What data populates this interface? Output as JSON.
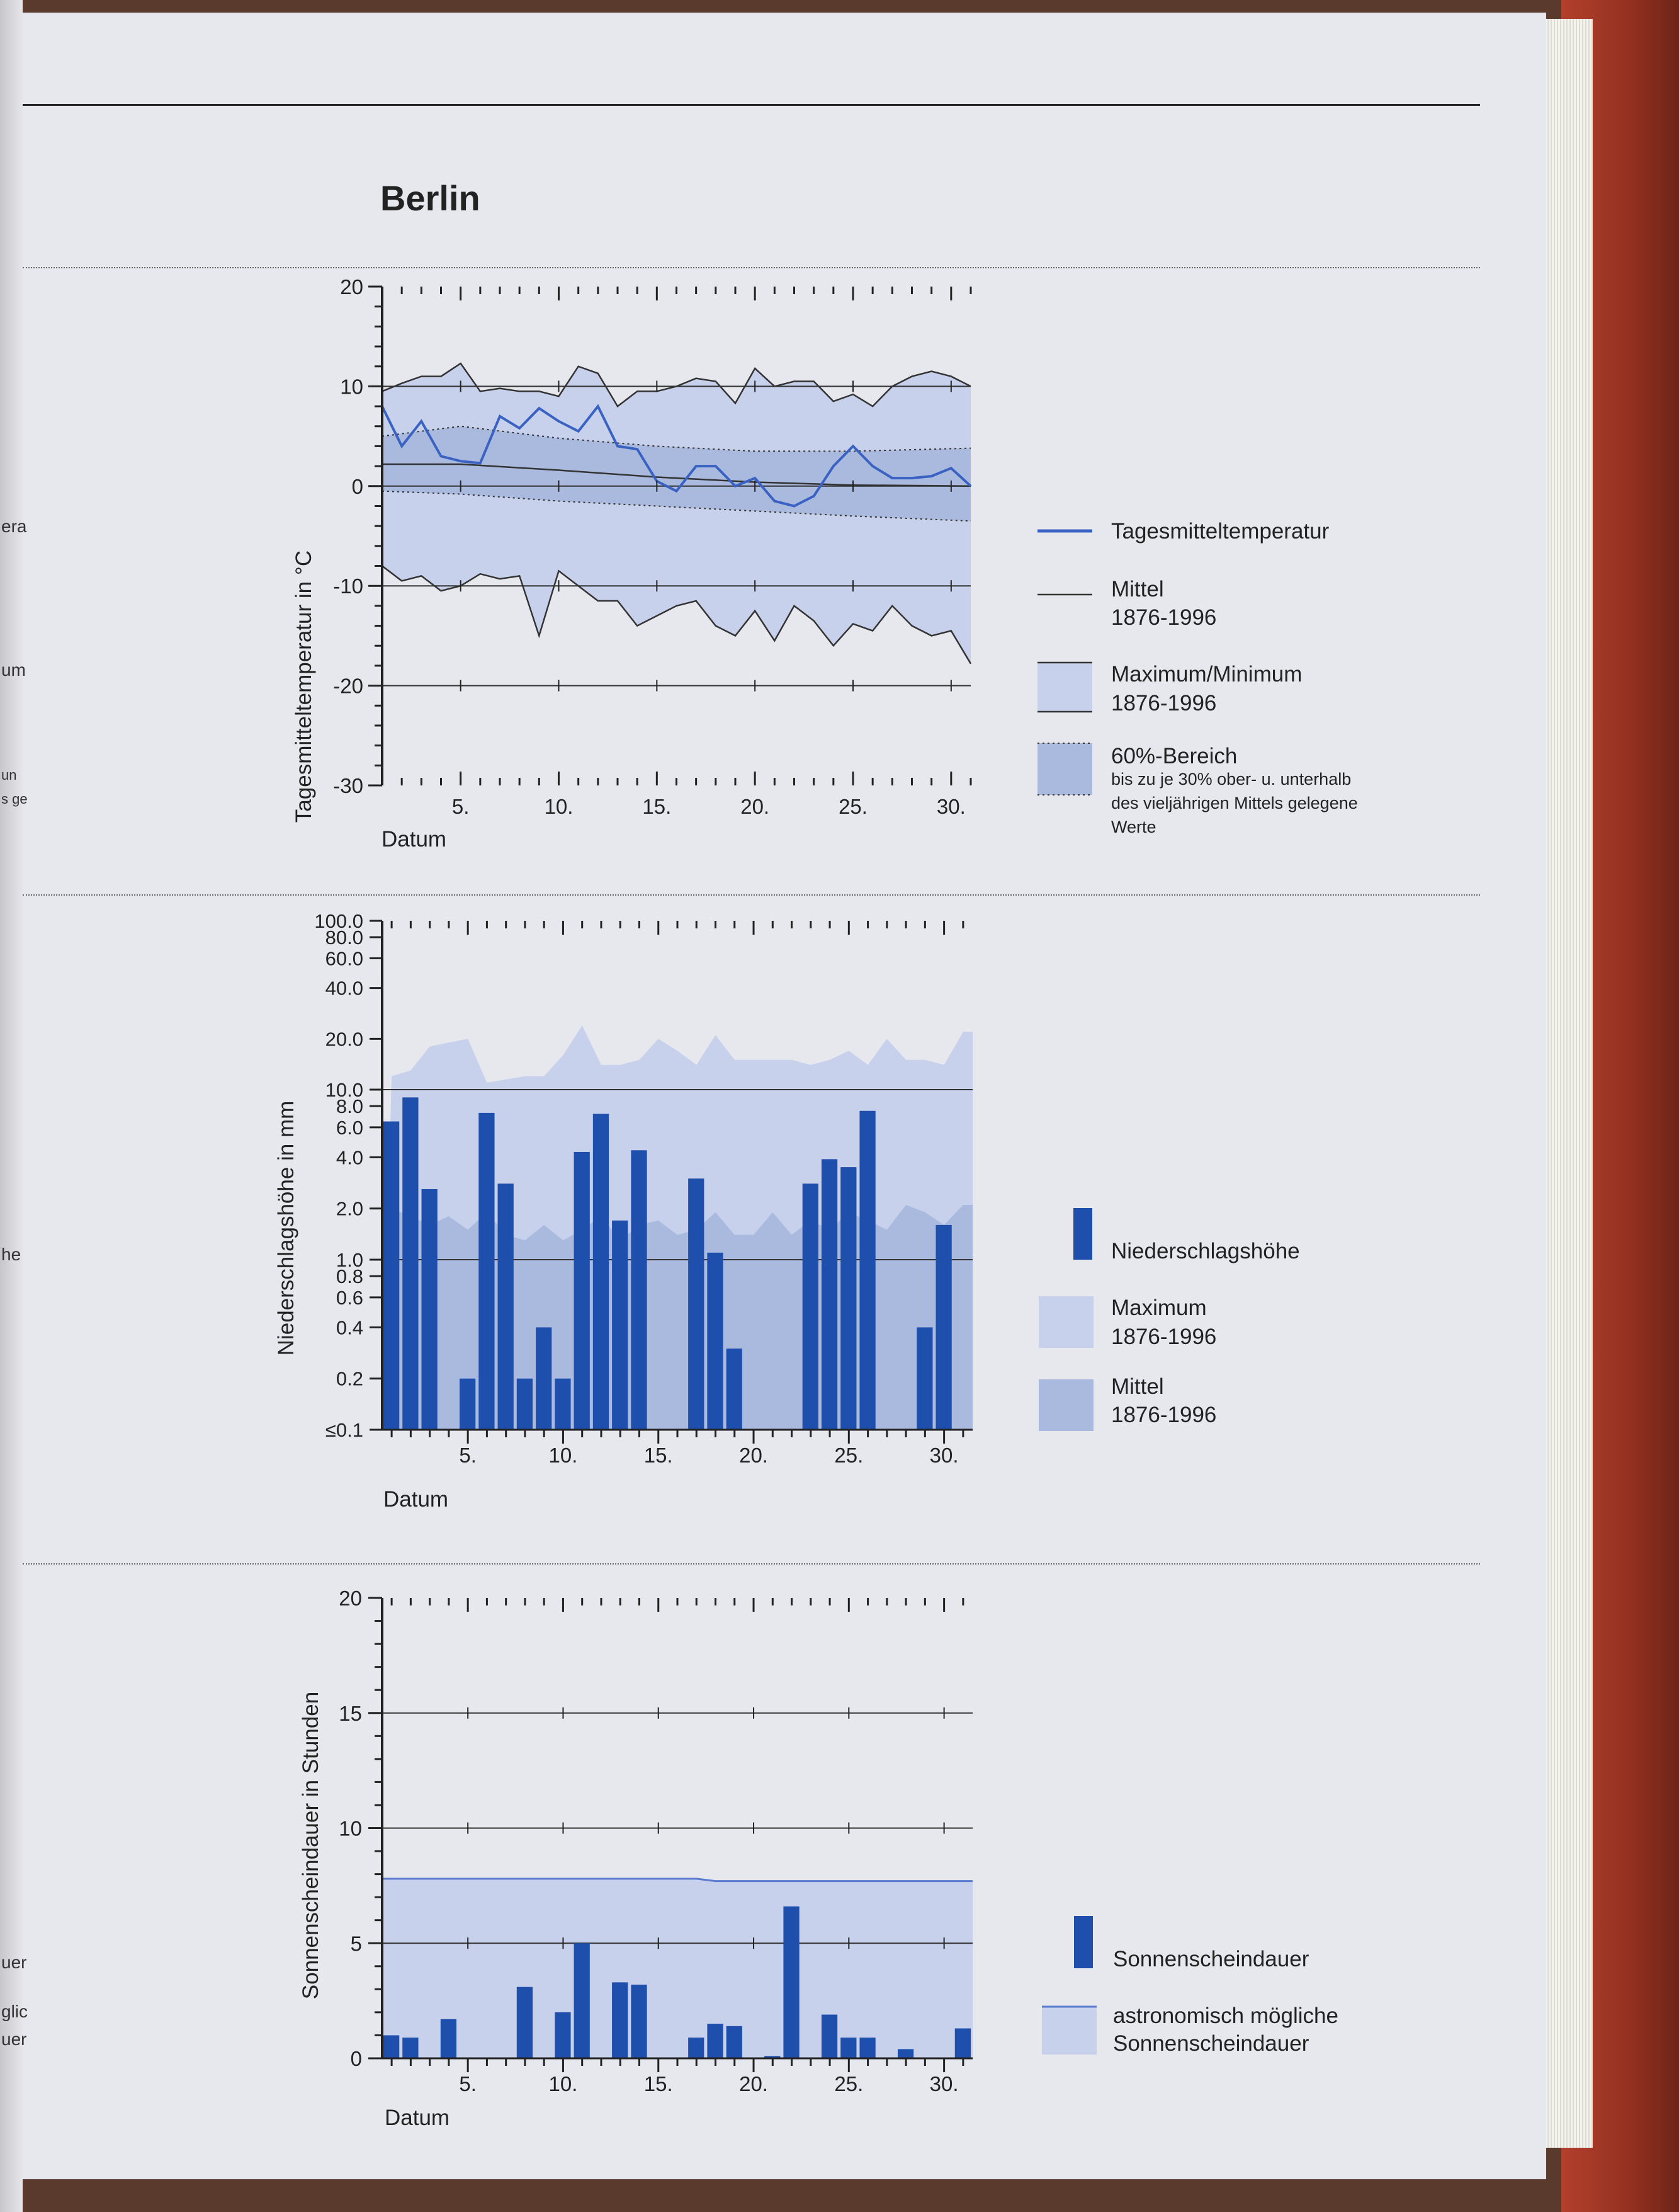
{
  "page": {
    "title": "Berlin",
    "side_fragments": [
      "era",
      "um",
      "un",
      "s ge",
      "he",
      "uer",
      "glic",
      "uer"
    ]
  },
  "charts": {
    "temperature": {
      "type": "line",
      "ylabel": "Tagesmitteltemperatur in °C",
      "xlabel": "Datum",
      "ylim": [
        -30,
        20
      ],
      "yticks": [
        "20",
        "10",
        "0",
        "-10",
        "-20",
        "-30"
      ],
      "xticks": [
        "5.",
        "10.",
        "15.",
        "20.",
        "25.",
        "30."
      ],
      "legend": {
        "daily": "Tagesmitteltemperatur",
        "mean_1": "Mittel",
        "mean_2": "1876-1996",
        "maxmin_1": "Maximum/Minimum",
        "maxmin_2": "1876-1996",
        "band_1": "60%-Bereich",
        "band_2": "bis zu je 30% ober- u. unterhalb",
        "band_3": "des vieljährigen Mittels gelegene",
        "band_4": "Werte"
      }
    },
    "precipitation": {
      "type": "bar",
      "ylabel": "Niederschlagshöhe in mm",
      "xlabel": "Datum",
      "yticks": [
        "100.0",
        "80.0",
        "60.0",
        "40.0",
        "20.0",
        "10.0",
        "8.0",
        "6.0",
        "4.0",
        "2.0",
        "1.0",
        "0.8",
        "0.6",
        "0.4",
        "0.2",
        "≤0.1"
      ],
      "xticks": [
        "5.",
        "10.",
        "15.",
        "20.",
        "25.",
        "30."
      ],
      "legend": {
        "bars": "Niederschlagshöhe",
        "max_1": "Maximum",
        "max_2": "1876-1996",
        "mean_1": "Mittel",
        "mean_2": "1876-1996"
      }
    },
    "sunshine": {
      "type": "bar",
      "ylabel": "Sonnenscheindauer in Stunden",
      "xlabel": "Datum",
      "ylim": [
        0,
        20
      ],
      "yticks": [
        "20",
        "15",
        "10",
        "5",
        "0"
      ],
      "xticks": [
        "5.",
        "10.",
        "15.",
        "20.",
        "25.",
        "30."
      ],
      "legend": {
        "bars": "Sonnenscheindauer",
        "astro_1": "astronomisch mögliche",
        "astro_2": "Sonnenscheindauer"
      }
    }
  },
  "chart_data": [
    {
      "type": "line",
      "xlabel": "Datum",
      "ylabel": "Tagesmitteltemperatur in °C",
      "ylim": [
        -30,
        20
      ],
      "xlim": [
        1,
        31
      ],
      "series": [
        {
          "name": "Tagesmitteltemperatur",
          "x": [
            1,
            2,
            3,
            4,
            5,
            6,
            7,
            8,
            9,
            10,
            11,
            12,
            13,
            14,
            15,
            16,
            17,
            18,
            19,
            20,
            21,
            22,
            23,
            24,
            25,
            26,
            27,
            28,
            29,
            30,
            31
          ],
          "values": [
            8,
            4,
            6.5,
            3,
            2.5,
            2.3,
            7,
            5.8,
            7.8,
            6.5,
            5.5,
            8,
            4,
            3.7,
            0.5,
            -0.5,
            2,
            2,
            0,
            0.8,
            -1.5,
            -2,
            -1,
            2,
            4,
            2,
            0.8,
            0.8,
            1,
            1.8,
            0
          ]
        },
        {
          "name": "Mittel 1876-1996",
          "x": [
            1,
            5,
            10,
            15,
            20,
            25,
            31
          ],
          "values": [
            2.2,
            2.2,
            1.6,
            0.9,
            0.4,
            0.1,
            0
          ]
        },
        {
          "name": "Maximum 1876-1996",
          "x": [
            1,
            2,
            3,
            4,
            5,
            6,
            7,
            8,
            9,
            10,
            11,
            12,
            13,
            14,
            15,
            16,
            17,
            18,
            19,
            20,
            21,
            22,
            23,
            24,
            25,
            26,
            27,
            28,
            29,
            30,
            31
          ],
          "values": [
            9.5,
            10.3,
            11,
            11,
            12.3,
            9.5,
            9.8,
            9.5,
            9.5,
            9,
            12,
            11.3,
            8,
            9.5,
            9.5,
            10,
            10.8,
            10.5,
            8.3,
            11.8,
            10,
            10.5,
            10.5,
            8.5,
            9.2,
            8,
            10,
            11,
            11.5,
            11,
            10
          ]
        },
        {
          "name": "Minimum 1876-1996",
          "x": [
            1,
            2,
            3,
            4,
            5,
            6,
            7,
            8,
            9,
            10,
            11,
            12,
            13,
            14,
            15,
            16,
            17,
            18,
            19,
            20,
            21,
            22,
            23,
            24,
            25,
            26,
            27,
            28,
            29,
            30,
            31
          ],
          "values": [
            -8,
            -9.5,
            -9,
            -10.5,
            -10,
            -8.8,
            -9.3,
            -9,
            -15,
            -8.5,
            -10,
            -11.5,
            -11.5,
            -14,
            -13,
            -12,
            -11.5,
            -14,
            -15,
            -12.5,
            -15.5,
            -12,
            -13.5,
            -16,
            -13.8,
            -14.5,
            -12,
            -14,
            -15,
            -14.5,
            -17.8
          ]
        },
        {
          "name": "60%-Bereich oben",
          "x": [
            1,
            5,
            10,
            15,
            20,
            25,
            31
          ],
          "values": [
            5,
            6,
            4.8,
            4,
            3.5,
            3.5,
            3.8
          ]
        },
        {
          "name": "60%-Bereich unten",
          "x": [
            1,
            5,
            10,
            15,
            20,
            25,
            31
          ],
          "values": [
            -0.5,
            -0.8,
            -1.5,
            -2,
            -2.5,
            -3,
            -3.5
          ]
        }
      ]
    },
    {
      "type": "bar",
      "xlabel": "Datum",
      "ylabel": "Niederschlagshöhe in mm",
      "ylim": [
        0.1,
        100
      ],
      "yscale": "log",
      "categories": [
        1,
        2,
        3,
        4,
        5,
        6,
        7,
        8,
        9,
        10,
        11,
        12,
        13,
        14,
        15,
        16,
        17,
        18,
        19,
        20,
        21,
        22,
        23,
        24,
        25,
        26,
        27,
        28,
        29,
        30,
        31
      ],
      "series": [
        {
          "name": "Niederschlagshöhe",
          "values": [
            6.5,
            9,
            2.6,
            0,
            0.2,
            7.3,
            2.8,
            0.2,
            0.4,
            0.2,
            4.3,
            7.2,
            1.7,
            4.4,
            0,
            0,
            3,
            1.1,
            0.3,
            0,
            0,
            0,
            2.8,
            3.9,
            3.5,
            7.5,
            0,
            0,
            0.4,
            1.6,
            0
          ]
        },
        {
          "name": "Maximum 1876-1996",
          "values": [
            12,
            13,
            18,
            19,
            20,
            11,
            11.5,
            12,
            12,
            16,
            24,
            14,
            14,
            15,
            20,
            17,
            14,
            21,
            15,
            15,
            15,
            15,
            14,
            15,
            17,
            14,
            20,
            15,
            15,
            14,
            22
          ]
        },
        {
          "name": "Mittel 1876-1996",
          "values": [
            2,
            1.8,
            1.6,
            1.8,
            1.5,
            1.9,
            1.4,
            1.3,
            1.6,
            1.3,
            1.5,
            1.8,
            1.3,
            1.6,
            1.7,
            1.4,
            1.5,
            1.9,
            1.4,
            1.4,
            1.9,
            1.4,
            1.7,
            1.5,
            1.9,
            1.7,
            1.5,
            2.1,
            1.9,
            1.6,
            2.1
          ]
        }
      ]
    },
    {
      "type": "bar",
      "xlabel": "Datum",
      "ylabel": "Sonnenscheindauer in Stunden",
      "ylim": [
        0,
        20
      ],
      "categories": [
        1,
        2,
        3,
        4,
        5,
        6,
        7,
        8,
        9,
        10,
        11,
        12,
        13,
        14,
        15,
        16,
        17,
        18,
        19,
        20,
        21,
        22,
        23,
        24,
        25,
        26,
        27,
        28,
        29,
        30,
        31
      ],
      "series": [
        {
          "name": "Sonnenscheindauer",
          "values": [
            1,
            0.9,
            0,
            1.7,
            0,
            0,
            0,
            3.1,
            0,
            2,
            5,
            0,
            3.3,
            3.2,
            0,
            0,
            0.9,
            1.5,
            1.4,
            0,
            0.1,
            6.6,
            0,
            1.9,
            0.9,
            0.9,
            0,
            0.4,
            0,
            0,
            1.3
          ]
        },
        {
          "name": "astronomisch mögliche Sonnenscheindauer",
          "values": [
            7.8,
            7.8,
            7.8,
            7.8,
            7.8,
            7.8,
            7.8,
            7.8,
            7.8,
            7.8,
            7.8,
            7.8,
            7.8,
            7.8,
            7.8,
            7.8,
            7.8,
            7.7,
            7.7,
            7.7,
            7.7,
            7.7,
            7.7,
            7.7,
            7.7,
            7.7,
            7.7,
            7.7,
            7.7,
            7.7,
            7.7
          ]
        }
      ]
    }
  ],
  "colors": {
    "page": "#e7e8ee",
    "maxmin_band": "#c7d1ec",
    "band60": "#aabadf",
    "bar": "#1f4fad",
    "line_blue": "#3a62c2",
    "astro_line": "#5a7cd0"
  }
}
